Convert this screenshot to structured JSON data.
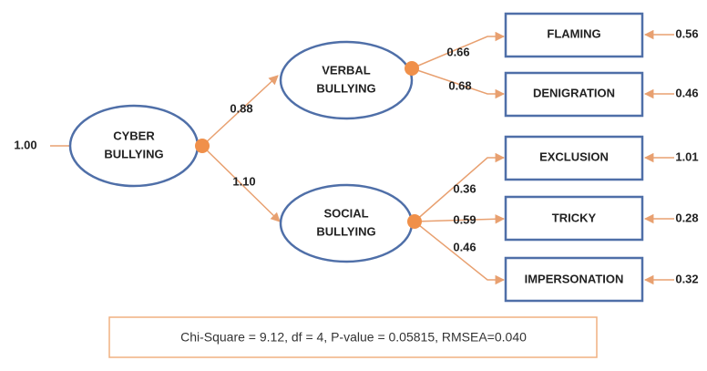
{
  "latent": [
    {
      "label_lines": [
        "CYBER",
        "BULLYING"
      ],
      "variance": "1.00"
    },
    {
      "label_lines": [
        "VERBAL",
        "BULLYING"
      ]
    },
    {
      "label_lines": [
        "SOCIAL",
        "BULLYING"
      ]
    }
  ],
  "structural_paths": [
    {
      "to": "VERBAL BULLYING",
      "label": "0.88"
    },
    {
      "to": "SOCIAL BULLYING",
      "label": "1.10"
    }
  ],
  "indicators": [
    {
      "label": "FLAMING",
      "loading": "0.66",
      "error": "0.56"
    },
    {
      "label": "DENIGRATION",
      "loading": "0.68",
      "error": "0.46"
    },
    {
      "label": "EXCLUSION",
      "loading": "0.36",
      "error": "1.01"
    },
    {
      "label": "TRICKY",
      "loading": "0.59",
      "error": "0.28"
    },
    {
      "label": "IMPERSONATION",
      "loading": "0.46",
      "error": "0.32"
    }
  ],
  "fit": "Chi-Square = 9.12, df = 4, P-value = 0.05815, RMSEA=0.040"
}
